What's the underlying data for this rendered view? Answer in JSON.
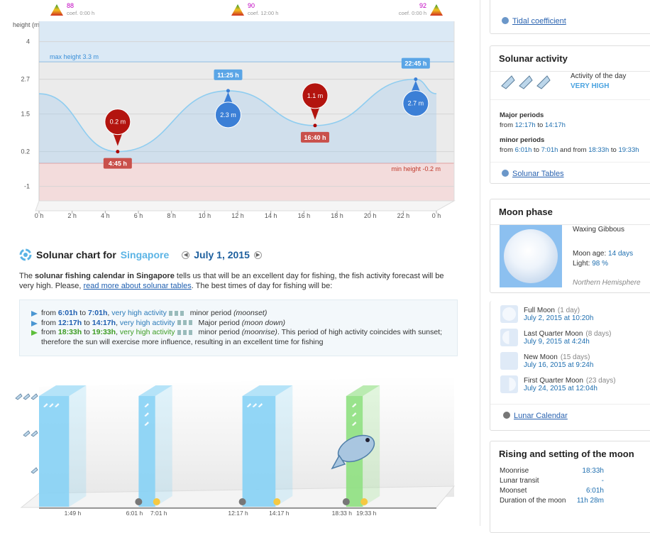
{
  "chart_data": [
    {
      "type": "line",
      "y_label": "height (m)",
      "x": [
        0,
        4.75,
        11.42,
        16.67,
        22.75,
        24
      ],
      "values": [
        2.2,
        0.2,
        2.3,
        1.1,
        2.7,
        2.2
      ],
      "value_labels": [
        null,
        "0.2 m",
        "2.3 m",
        "1.1 m",
        "2.7 m",
        null
      ],
      "time_labels": [
        null,
        "4:45 h",
        "11:25 h",
        "16:40 h",
        "22:45 h",
        null
      ],
      "color": "#8fcdf0",
      "low_color": "#b3140f",
      "high_color": "#3b7fd6",
      "xlim": [
        0,
        24
      ],
      "xticks": [
        {
          "value": 0,
          "label": "0 h"
        },
        {
          "value": 2,
          "label": "2 h"
        },
        {
          "value": 4,
          "label": "4 h"
        },
        {
          "value": 6,
          "label": "6 h"
        },
        {
          "value": 8,
          "label": "8 h"
        },
        {
          "value": 10,
          "label": "10 h"
        },
        {
          "value": 12,
          "label": "12 h"
        },
        {
          "value": 14,
          "label": "14 h"
        },
        {
          "value": 16,
          "label": "16 h"
        },
        {
          "value": 18,
          "label": "18 h"
        },
        {
          "value": 20,
          "label": "20 h"
        },
        {
          "value": 22,
          "label": "22 h"
        },
        {
          "value": 24,
          "label": "0 h"
        }
      ],
      "ylim": [
        -1.5,
        4.7
      ],
      "yticks": [
        -1,
        0.2,
        1.5,
        2.7,
        4
      ],
      "grid": true,
      "max_line": {
        "value": 3.3,
        "label": "max height 3.3 m"
      },
      "min_line": {
        "value": -0.2,
        "label": "min height -0.2 m"
      },
      "coefficients": [
        {
          "x": 0,
          "value": 88,
          "label": "coef. 0:00 h"
        },
        {
          "x": 12,
          "value": 90,
          "label": "coef. 12:00 h"
        },
        {
          "x": 24,
          "value": 92,
          "label": "coef. 0:00 h"
        }
      ]
    },
    {
      "type": "bar",
      "periods": [
        {
          "end": "1:49 h",
          "value": 3,
          "color": "#86d2f5"
        },
        {
          "start": "6:01 h",
          "end": "7:01 h",
          "value": 3,
          "color": "#86d2f5"
        },
        {
          "start": "12:17 h",
          "end": "14:17 h",
          "value": 3,
          "color": "#86d2f5"
        },
        {
          "start": "18:33 h",
          "end": "19:33 h",
          "value": 3,
          "color": "#8ee07f"
        }
      ],
      "xlim": [
        0,
        24
      ],
      "ylim": [
        0,
        3
      ],
      "yticks": [
        1,
        2,
        3
      ]
    }
  ],
  "article": {
    "title": "Solunar chart for",
    "city": "Singapore",
    "date": "July 1, 2015",
    "intro": [
      {
        "text": "The "
      },
      {
        "text": "solunar fishing calendar in Singapore",
        "style": "b"
      },
      {
        "text": " tells us that will be an excellent day for fishing, the fish activity forecast will be very high. Please, "
      },
      {
        "text": "read more about solunar tables",
        "style": "a"
      },
      {
        "text": ". The best times of day for fishing will be:"
      }
    ],
    "items": [
      {
        "arrow": "blue",
        "segments": [
          {
            "text": "from "
          },
          {
            "text": "6:01h",
            "style": "tb"
          },
          {
            "text": " to "
          },
          {
            "text": "7:01h",
            "style": "tb"
          },
          {
            "text": ", "
          },
          {
            "text": "very high activity",
            "style": "blue"
          },
          {
            "text": " minor period "
          },
          {
            "text": "(moonset)",
            "style": "i"
          }
        ]
      },
      {
        "arrow": "blue",
        "segments": [
          {
            "text": "from "
          },
          {
            "text": "12:17h",
            "style": "tb"
          },
          {
            "text": " to "
          },
          {
            "text": "14:17h",
            "style": "tb"
          },
          {
            "text": ", "
          },
          {
            "text": "very high activity",
            "style": "blue"
          },
          {
            "text": " Major period "
          },
          {
            "text": "(moon down)",
            "style": "i"
          }
        ]
      },
      {
        "arrow": "green",
        "segments": [
          {
            "text": "from "
          },
          {
            "text": "18:33h",
            "style": "gb"
          },
          {
            "text": " to "
          },
          {
            "text": "19:33h",
            "style": "gb"
          },
          {
            "text": ", "
          },
          {
            "text": "very high activity",
            "style": "g"
          },
          {
            "text": " minor period "
          },
          {
            "text": "(moonrise)",
            "style": "i"
          },
          {
            "text": ". This period of high activity coincides with sunset; therefore the sun will exercise more influence, resulting in an excellent time for fishing"
          }
        ]
      }
    ]
  },
  "sidebar": {
    "tidal_link": "Tidal coefficient",
    "solunar": {
      "title": "Solunar activity",
      "activity_label": "Activity of the day",
      "activity": "VERY HIGH",
      "major_title": "Major periods",
      "major": [
        {
          "text": "from "
        },
        {
          "text": "12:17h",
          "style": "t"
        },
        {
          "text": " to "
        },
        {
          "text": "14:17h",
          "style": "t"
        }
      ],
      "minor_title": "minor periods",
      "minor": [
        {
          "text": "from "
        },
        {
          "text": "6:01h",
          "style": "t"
        },
        {
          "text": " to "
        },
        {
          "text": "7:01h",
          "style": "t"
        },
        {
          "text": " and from "
        },
        {
          "text": "18:33h",
          "style": "t"
        },
        {
          "text": " to "
        },
        {
          "text": "19:33h",
          "style": "t"
        }
      ],
      "link": "Solunar Tables"
    },
    "moon": {
      "title": "Moon phase",
      "phase": "Waxing Gibbous",
      "age_label": "Moon age: ",
      "age": "14 days",
      "light_label": "Light: ",
      "light": "98 %",
      "hemisphere": "Northern Hemisphere",
      "phases": [
        {
          "name": "Full Moon",
          "days": "(1 day)",
          "date": "July 2, 2015 at 10:20h"
        },
        {
          "name": "Last Quarter Moon",
          "days": "(8 days)",
          "date": "July 9, 2015 at 4:24h"
        },
        {
          "name": "New Moon",
          "days": "(15 days)",
          "date": "July 16, 2015 at 9:24h"
        },
        {
          "name": "First Quarter Moon",
          "days": "(23 days)",
          "date": "July 24, 2015 at 12:04h"
        }
      ],
      "link": "Lunar Calendar"
    },
    "rising": {
      "title": "Rising and setting of the moon",
      "rows": [
        [
          "Moonrise",
          "18:33h"
        ],
        [
          "Lunar transit",
          "-"
        ],
        [
          "Moonset",
          "6:01h"
        ],
        [
          "Duration of the moon",
          "11h 28m"
        ]
      ]
    }
  }
}
